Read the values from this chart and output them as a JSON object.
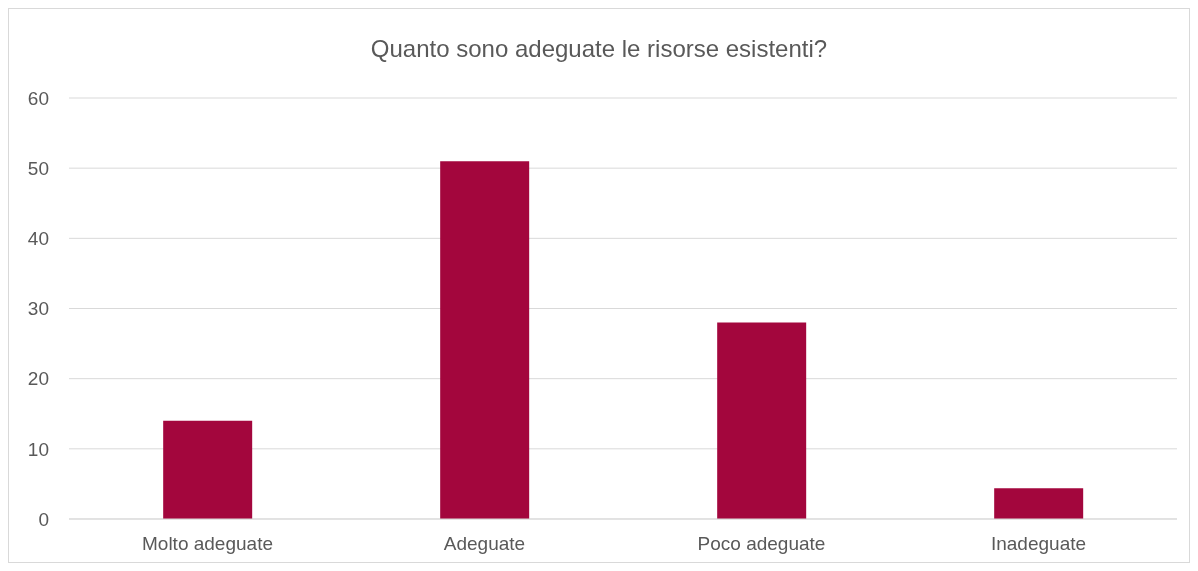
{
  "chart_data": {
    "type": "bar",
    "title": "Quanto sono adeguate le risorse esistenti?",
    "categories": [
      "Molto adeguate",
      "Adeguate",
      "Poco adeguate",
      "Inadeguate"
    ],
    "values": [
      14,
      51,
      28,
      4.4
    ],
    "color": "#a3063d",
    "ylim": [
      0,
      60
    ],
    "yticks": [
      0,
      10,
      20,
      30,
      40,
      50,
      60
    ],
    "grid": "y",
    "legend": false
  }
}
